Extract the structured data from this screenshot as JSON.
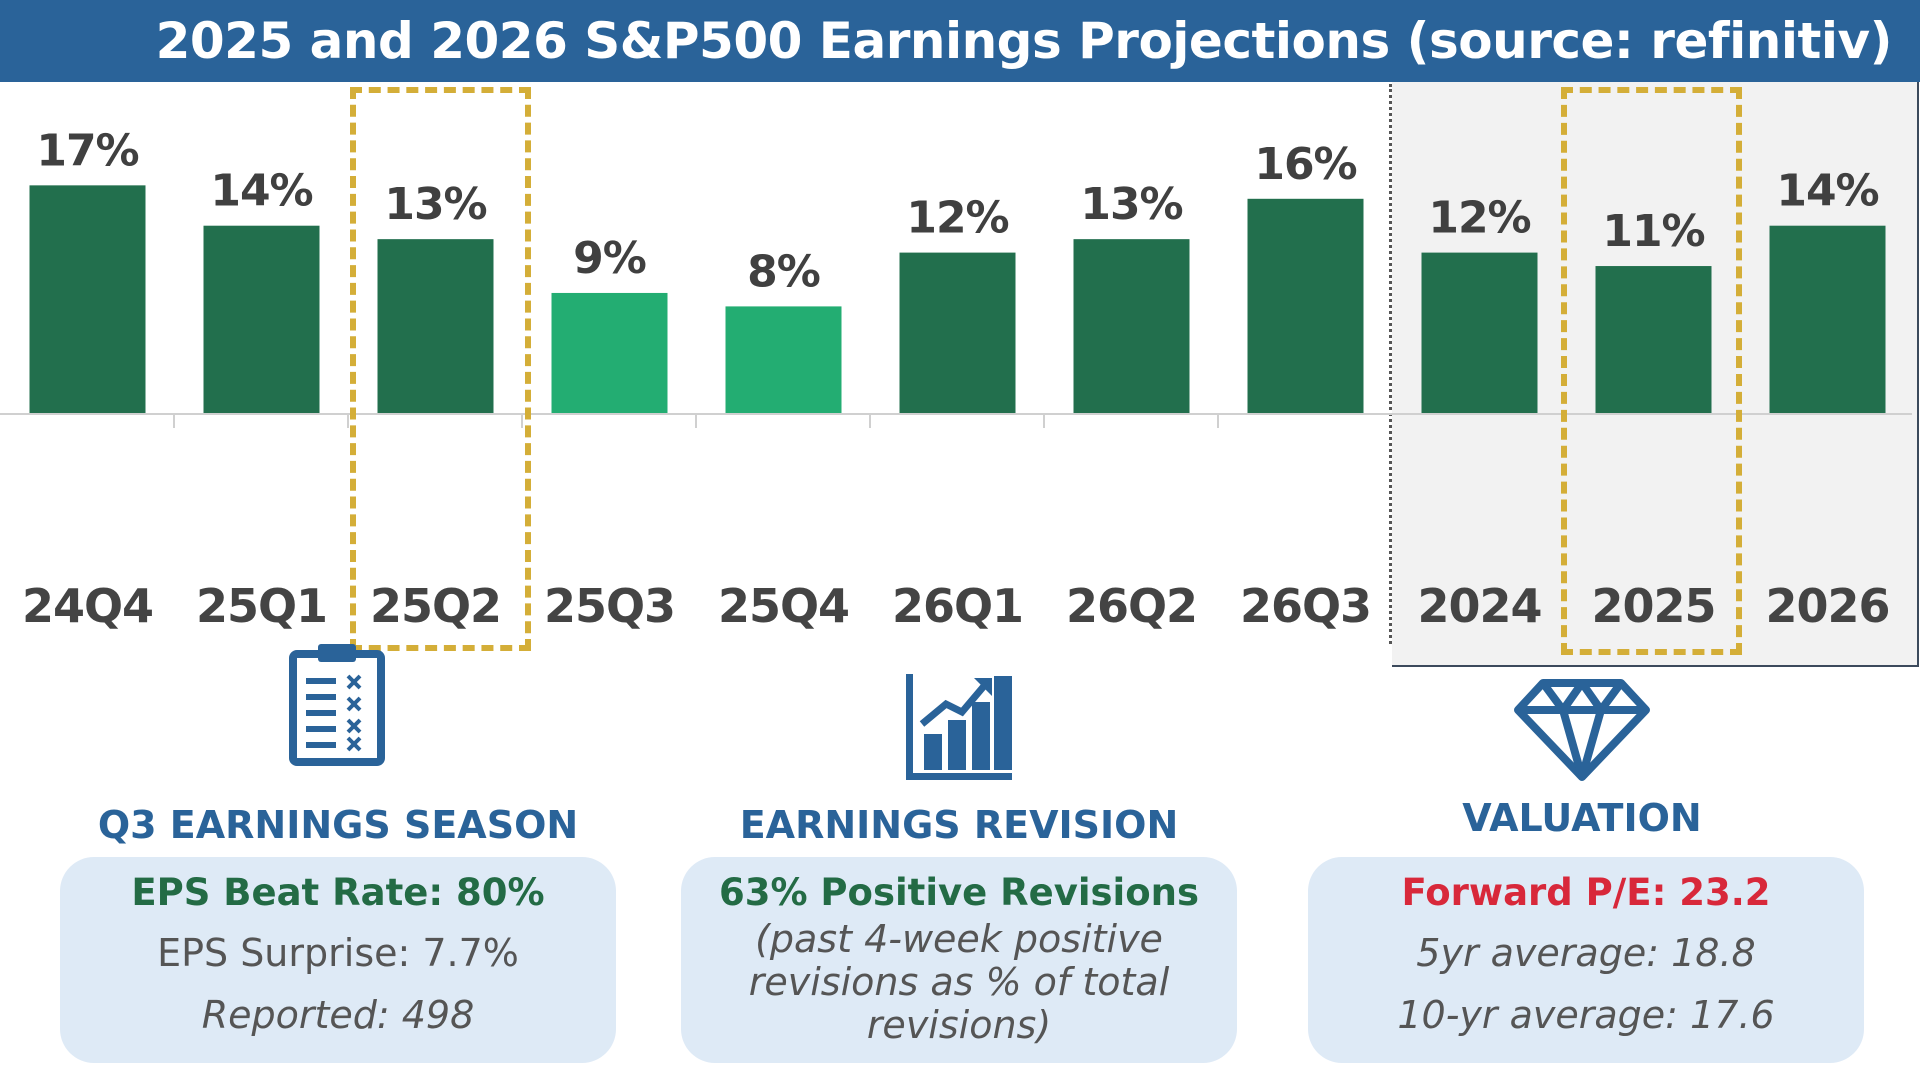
{
  "title": "2025 and 2026 S&P500 Earnings Projections (source: refinitiv)",
  "colors": {
    "title_bar": "#2a6399",
    "bar_dark_green": "#226f4d",
    "bar_light_green": "#23ad72",
    "highlight_gold": "#d4ae38",
    "heading_blue": "#2a6399",
    "card_bg": "#deeaf6",
    "panel_gray": "#f2f2f2",
    "accent_red": "#d8283a"
  },
  "chart_data": {
    "type": "bar",
    "title": "2025 and 2026 S&P500 Earnings Projections (source: refinitiv)",
    "xlabel": "",
    "ylabel": "",
    "ylim": [
      0,
      20
    ],
    "grid": false,
    "legend": "none",
    "categories": [
      "24Q4",
      "25Q1",
      "25Q2",
      "25Q3",
      "25Q4",
      "26Q1",
      "26Q2",
      "26Q3",
      "2024",
      "2025",
      "2026"
    ],
    "values": [
      17,
      14,
      13,
      9,
      8,
      12,
      13,
      16,
      12,
      11,
      14
    ],
    "value_labels": [
      "17%",
      "14%",
      "13%",
      "9%",
      "8%",
      "12%",
      "13%",
      "16%",
      "12%",
      "11%",
      "14%"
    ],
    "bar_colors": [
      "#226f4d",
      "#226f4d",
      "#226f4d",
      "#23ad72",
      "#23ad72",
      "#226f4d",
      "#226f4d",
      "#226f4d",
      "#226f4d",
      "#226f4d",
      "#226f4d"
    ],
    "highlighted": [
      "25Q2",
      "2025"
    ],
    "annual_group": [
      "2024",
      "2025",
      "2026"
    ]
  },
  "panels": [
    {
      "icon": "clipboard-checklist-icon",
      "heading": "Q3 EARNINGS SEASON",
      "headline": "EPS Beat Rate: 80%",
      "line1": "EPS Surprise: 7.7%",
      "line2": "Reported: 498"
    },
    {
      "icon": "growth-chart-icon",
      "heading": "EARNINGS REVISION",
      "headline": "63% Positive Revisions",
      "line1": "(past 4-week positive",
      "line2": "revisions as % of total",
      "line3": "revisions)"
    },
    {
      "icon": "diamond-icon",
      "heading": "VALUATION",
      "headline": "Forward P/E: 23.2",
      "line1": "5yr average: 18.8",
      "line2": "10-yr average: 17.6"
    }
  ]
}
